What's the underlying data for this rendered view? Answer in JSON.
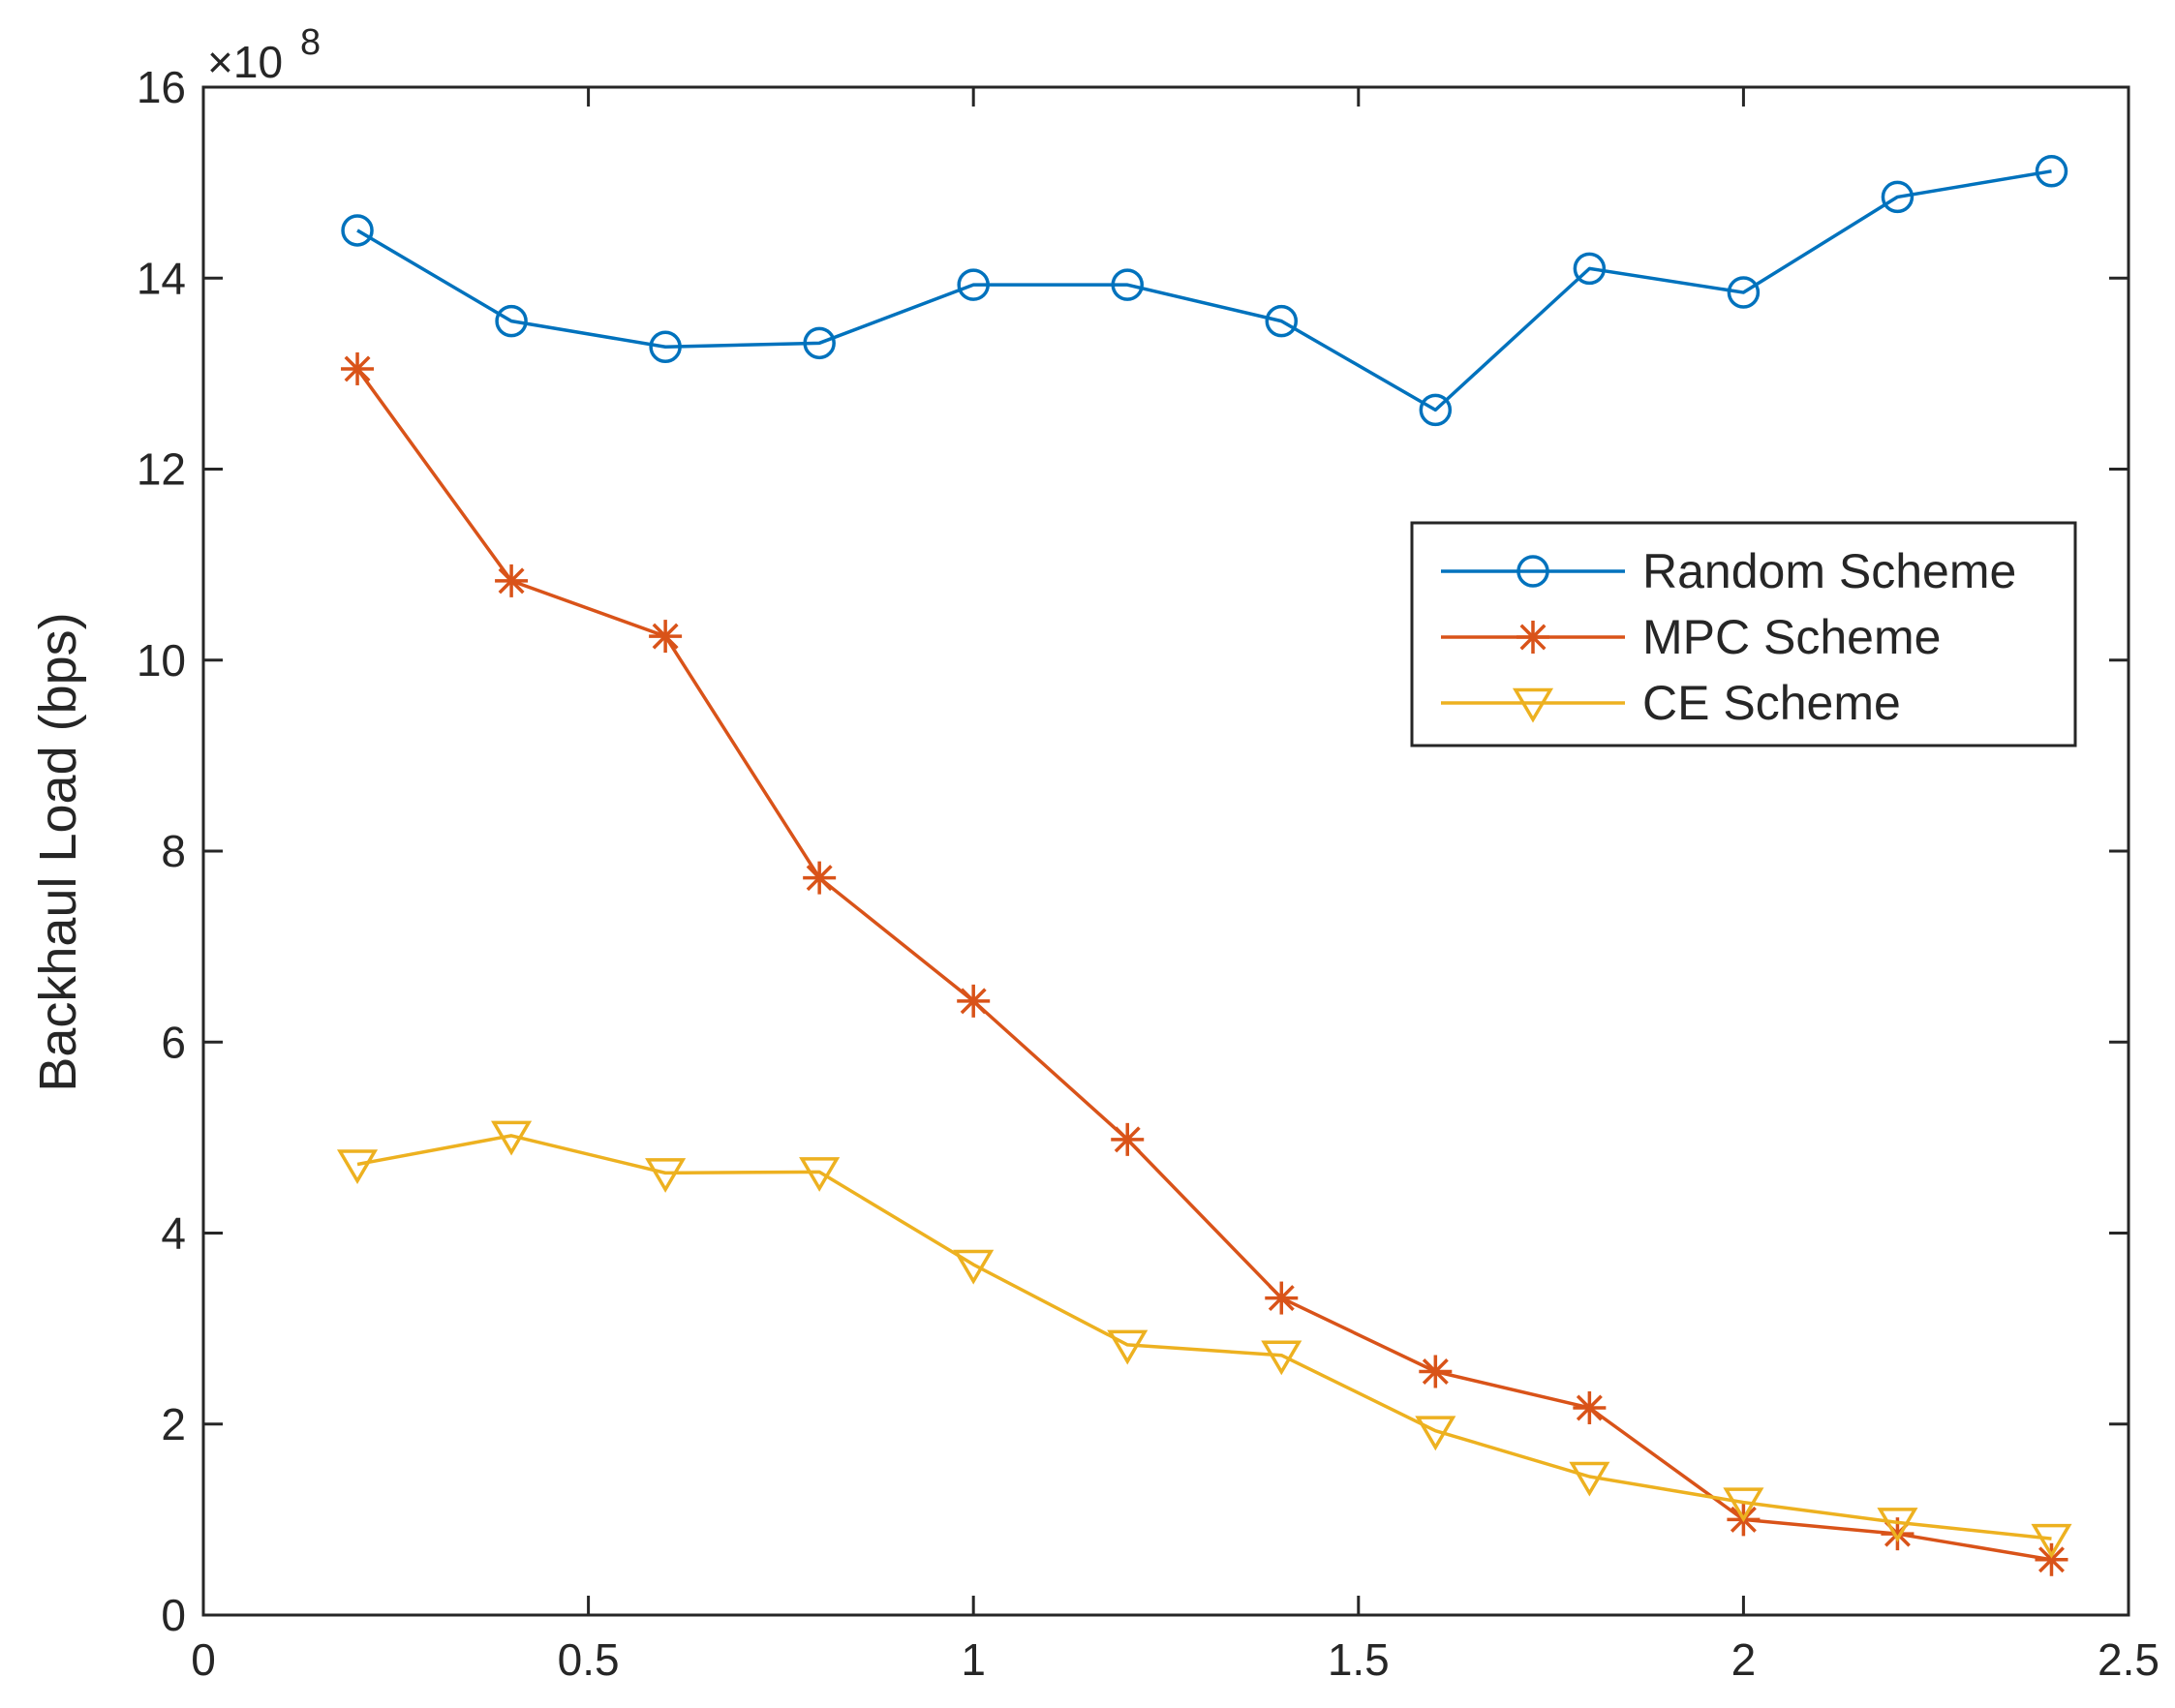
{
  "chart_data": {
    "type": "line",
    "title": "",
    "xlabel": "",
    "ylabel": "Backhaul Load (bps)",
    "y_exponent_label": "×10",
    "y_exponent_power": "8",
    "xlim": [
      0,
      2.5
    ],
    "ylim": [
      0,
      16
    ],
    "xticks": [
      0,
      0.5,
      1,
      1.5,
      2,
      2.5
    ],
    "xtick_labels": [
      "0",
      "0.5",
      "1",
      "1.5",
      "2",
      "2.5"
    ],
    "yticks": [
      0,
      2,
      4,
      6,
      8,
      10,
      12,
      14,
      16
    ],
    "ytick_labels": [
      "0",
      "2",
      "4",
      "6",
      "8",
      "10",
      "12",
      "14",
      "16"
    ],
    "grid": false,
    "legend_position": "upper-right",
    "x": [
      0.2,
      0.4,
      0.6,
      0.8,
      1.0,
      1.2,
      1.4,
      1.6,
      1.8,
      2.0,
      2.2,
      2.4
    ],
    "series": [
      {
        "name": "Random Scheme",
        "color": "#0072BD",
        "marker": "circle",
        "values": [
          14.5,
          13.55,
          13.28,
          13.32,
          13.93,
          13.93,
          13.55,
          12.62,
          14.1,
          13.85,
          14.85,
          15.12
        ]
      },
      {
        "name": "MPC Scheme",
        "color": "#D95319",
        "marker": "asterisk",
        "values": [
          13.05,
          10.83,
          10.25,
          7.72,
          6.43,
          4.98,
          3.32,
          2.55,
          2.17,
          1.0,
          0.85,
          0.58
        ]
      },
      {
        "name": "CE Scheme",
        "color": "#EDB120",
        "marker": "triangle-down",
        "values": [
          4.72,
          5.02,
          4.63,
          4.64,
          3.67,
          2.83,
          2.72,
          1.93,
          1.45,
          1.18,
          0.97,
          0.8
        ]
      }
    ]
  }
}
